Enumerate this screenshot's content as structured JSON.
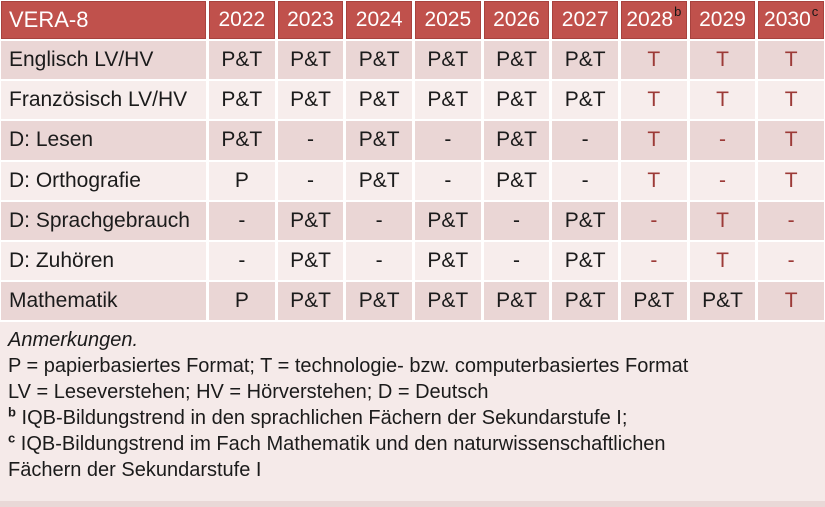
{
  "colors": {
    "header_bg": "#C0514C",
    "header_border": "#A8423E",
    "band_dark": "#EAD6D5",
    "band_light": "#F7EDEC",
    "notes_bg": "#F5EAE9",
    "bottom_strip": "#E9D8D7",
    "accent_text": "#9C3A37",
    "body_text": "#1B1B1B",
    "header_text": "#FFFFFF",
    "cell_border": "#FFFFFF"
  },
  "table": {
    "title": "VERA-8",
    "columns": [
      {
        "label": "2022",
        "sup": ""
      },
      {
        "label": "2023",
        "sup": ""
      },
      {
        "label": "2024",
        "sup": ""
      },
      {
        "label": "2025",
        "sup": ""
      },
      {
        "label": "2026",
        "sup": ""
      },
      {
        "label": "2027",
        "sup": ""
      },
      {
        "label": "2028",
        "sup": "b"
      },
      {
        "label": "2029",
        "sup": ""
      },
      {
        "label": "2030",
        "sup": "c"
      }
    ],
    "rows": [
      {
        "label": "Englisch LV/HV",
        "cells": [
          {
            "t": "P&T",
            "red": false
          },
          {
            "t": "P&T",
            "red": false
          },
          {
            "t": "P&T",
            "red": false
          },
          {
            "t": "P&T",
            "red": false
          },
          {
            "t": "P&T",
            "red": false
          },
          {
            "t": "P&T",
            "red": false
          },
          {
            "t": "T",
            "red": true
          },
          {
            "t": "T",
            "red": true
          },
          {
            "t": "T",
            "red": true
          }
        ]
      },
      {
        "label": "Französisch LV/HV",
        "cells": [
          {
            "t": "P&T",
            "red": false
          },
          {
            "t": "P&T",
            "red": false
          },
          {
            "t": "P&T",
            "red": false
          },
          {
            "t": "P&T",
            "red": false
          },
          {
            "t": "P&T",
            "red": false
          },
          {
            "t": "P&T",
            "red": false
          },
          {
            "t": "T",
            "red": true
          },
          {
            "t": "T",
            "red": true
          },
          {
            "t": "T",
            "red": true
          }
        ]
      },
      {
        "label": "D: Lesen",
        "cells": [
          {
            "t": "P&T",
            "red": false
          },
          {
            "t": "-",
            "red": false
          },
          {
            "t": "P&T",
            "red": false
          },
          {
            "t": "-",
            "red": false
          },
          {
            "t": "P&T",
            "red": false
          },
          {
            "t": "-",
            "red": false
          },
          {
            "t": "T",
            "red": true
          },
          {
            "t": "-",
            "red": true
          },
          {
            "t": "T",
            "red": true
          }
        ]
      },
      {
        "label": "D: Orthografie",
        "cells": [
          {
            "t": "P",
            "red": false
          },
          {
            "t": "-",
            "red": false
          },
          {
            "t": "P&T",
            "red": false
          },
          {
            "t": "-",
            "red": false
          },
          {
            "t": "P&T",
            "red": false
          },
          {
            "t": "-",
            "red": false
          },
          {
            "t": "T",
            "red": true
          },
          {
            "t": "-",
            "red": true
          },
          {
            "t": "T",
            "red": true
          }
        ]
      },
      {
        "label": "D: Sprachgebrauch",
        "cells": [
          {
            "t": "-",
            "red": false
          },
          {
            "t": "P&T",
            "red": false
          },
          {
            "t": "-",
            "red": false
          },
          {
            "t": "P&T",
            "red": false
          },
          {
            "t": "-",
            "red": false
          },
          {
            "t": "P&T",
            "red": false
          },
          {
            "t": "-",
            "red": true
          },
          {
            "t": "T",
            "red": true
          },
          {
            "t": "-",
            "red": true
          }
        ]
      },
      {
        "label": "D: Zuhören",
        "cells": [
          {
            "t": "-",
            "red": false
          },
          {
            "t": "P&T",
            "red": false
          },
          {
            "t": "-",
            "red": false
          },
          {
            "t": "P&T",
            "red": false
          },
          {
            "t": "-",
            "red": false
          },
          {
            "t": "P&T",
            "red": false
          },
          {
            "t": "-",
            "red": true
          },
          {
            "t": "T",
            "red": true
          },
          {
            "t": "-",
            "red": true
          }
        ]
      },
      {
        "label": "Mathematik",
        "cells": [
          {
            "t": "P",
            "red": false
          },
          {
            "t": "P&T",
            "red": false
          },
          {
            "t": "P&T",
            "red": false
          },
          {
            "t": "P&T",
            "red": false
          },
          {
            "t": "P&T",
            "red": false
          },
          {
            "t": "P&T",
            "red": false
          },
          {
            "t": "P&T",
            "red": false
          },
          {
            "t": "P&T",
            "red": false
          },
          {
            "t": "T",
            "red": true
          }
        ]
      }
    ]
  },
  "notes": {
    "heading": "Anmerkungen.",
    "legend_lines": [
      "P = papierbasiertes Format; T = technologie- bzw. computerbasiertes Format",
      "LV = Leseverstehen; HV = Hörverstehen; D = Deutsch"
    ],
    "footnotes": [
      {
        "sup": "b",
        "text": "IQB-Bildungstrend in den sprachlichen Fächern der Sekundarstufe I;"
      },
      {
        "sup": "c",
        "text": "IQB-Bildungstrend im Fach Mathematik und den naturwissenschaftlichen Fächern der Sekundarstufe I"
      }
    ]
  }
}
